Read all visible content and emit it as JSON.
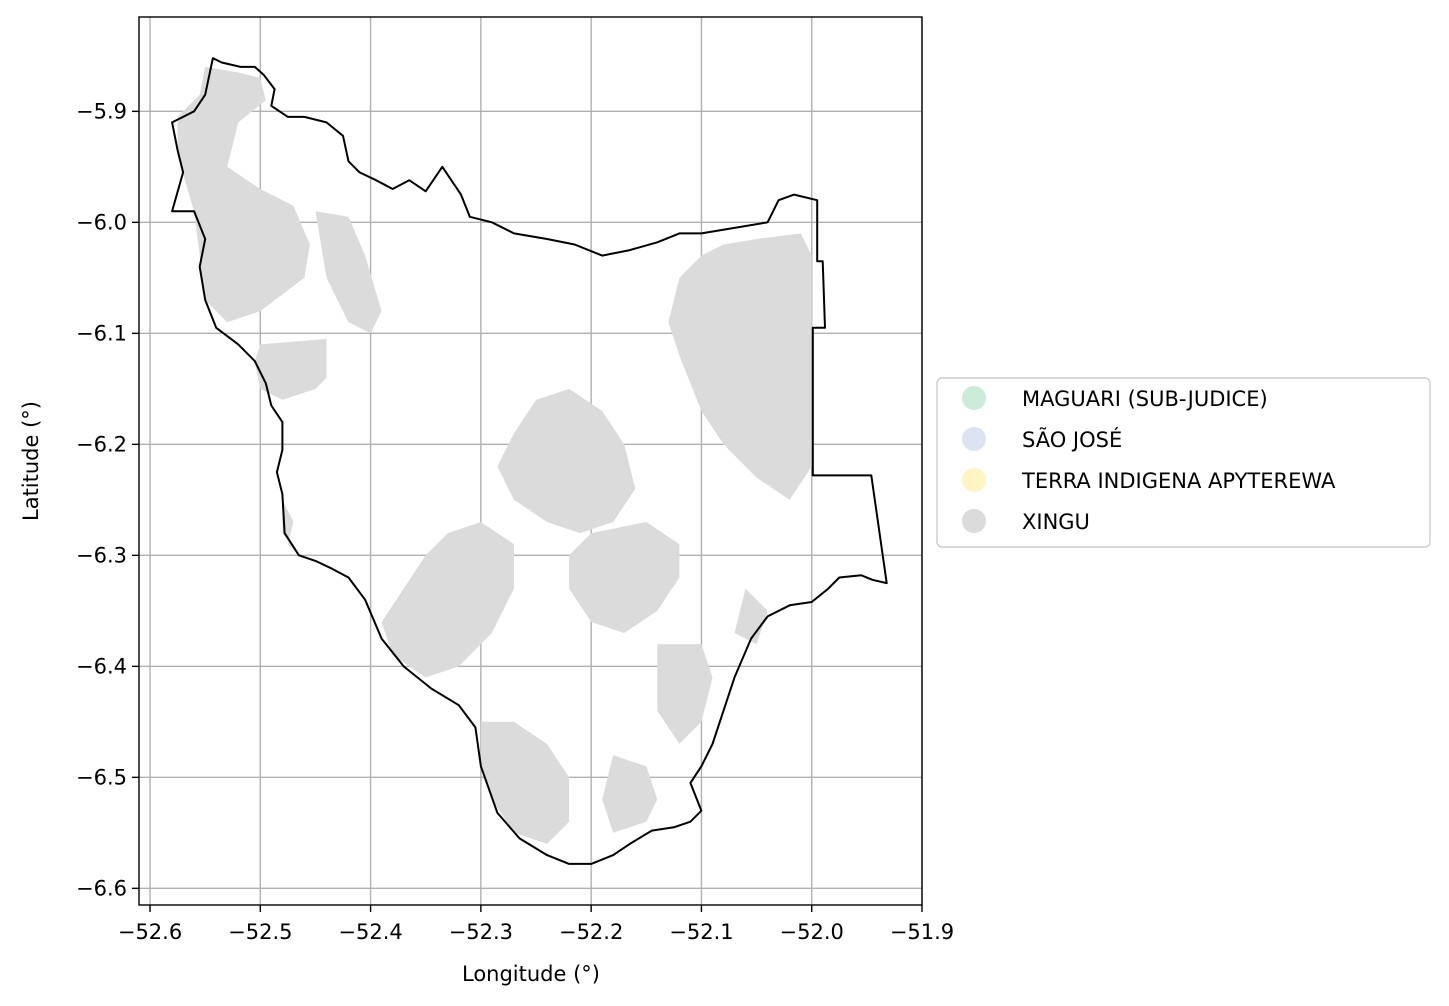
{
  "chart_data": {
    "type": "map",
    "title": "",
    "xlabel": "Longitude (°)",
    "ylabel": "Latitude (°)",
    "xlim": [
      -52.61,
      -51.9
    ],
    "ylim": [
      -6.615,
      -5.815
    ],
    "grid": true,
    "xticks": [
      {
        "value": -52.6,
        "label": "−52.6"
      },
      {
        "value": -52.5,
        "label": "−52.5"
      },
      {
        "value": -52.4,
        "label": "−52.4"
      },
      {
        "value": -52.3,
        "label": "−52.3"
      },
      {
        "value": -52.2,
        "label": "−52.2"
      },
      {
        "value": -52.1,
        "label": "−52.1"
      },
      {
        "value": -52.0,
        "label": "−52.0"
      },
      {
        "value": -51.9,
        "label": "−51.9"
      }
    ],
    "yticks": [
      {
        "value": -5.9,
        "label": "−5.9"
      },
      {
        "value": -6.0,
        "label": "−6.0"
      },
      {
        "value": -6.1,
        "label": "−6.1"
      },
      {
        "value": -6.2,
        "label": "−6.2"
      },
      {
        "value": -6.3,
        "label": "−6.3"
      },
      {
        "value": -6.4,
        "label": "−6.4"
      },
      {
        "value": -6.5,
        "label": "−6.5"
      },
      {
        "value": -6.6,
        "label": "−6.6"
      }
    ],
    "legend_position": "center-right outside",
    "legend": [
      {
        "label": "MAGUARI (SUB-JUDICE)",
        "color": "#ccebd9"
      },
      {
        "label": "SÃO JOSÉ",
        "color": "#dde3f0"
      },
      {
        "label": "TERRA INDIGENA APYTEREWA",
        "color": "#fff4c2"
      },
      {
        "label": "XINGU",
        "color": "#dbdbdb"
      }
    ],
    "boundary": {
      "color": "#000000",
      "coordinates": [
        [
          -52.543,
          -5.852
        ],
        [
          -52.535,
          -5.856
        ],
        [
          -52.518,
          -5.86
        ],
        [
          -52.505,
          -5.86
        ],
        [
          -52.497,
          -5.867
        ],
        [
          -52.487,
          -5.88
        ],
        [
          -52.49,
          -5.895
        ],
        [
          -52.475,
          -5.905
        ],
        [
          -52.46,
          -5.905
        ],
        [
          -52.44,
          -5.91
        ],
        [
          -52.425,
          -5.922
        ],
        [
          -52.42,
          -5.945
        ],
        [
          -52.41,
          -5.955
        ],
        [
          -52.395,
          -5.962
        ],
        [
          -52.38,
          -5.97
        ],
        [
          -52.365,
          -5.962
        ],
        [
          -52.35,
          -5.972
        ],
        [
          -52.335,
          -5.95
        ],
        [
          -52.318,
          -5.975
        ],
        [
          -52.31,
          -5.995
        ],
        [
          -52.29,
          -6.0
        ],
        [
          -52.27,
          -6.01
        ],
        [
          -52.24,
          -6.015
        ],
        [
          -52.215,
          -6.02
        ],
        [
          -52.19,
          -6.03
        ],
        [
          -52.165,
          -6.025
        ],
        [
          -52.14,
          -6.018
        ],
        [
          -52.12,
          -6.01
        ],
        [
          -52.1,
          -6.01
        ],
        [
          -52.07,
          -6.005
        ],
        [
          -52.04,
          -6.0
        ],
        [
          -52.03,
          -5.98
        ],
        [
          -52.016,
          -5.975
        ],
        [
          -51.995,
          -5.98
        ],
        [
          -51.995,
          -6.035
        ],
        [
          -51.99,
          -6.035
        ],
        [
          -51.988,
          -6.095
        ],
        [
          -51.999,
          -6.095
        ],
        [
          -51.999,
          -6.228
        ],
        [
          -51.946,
          -6.228
        ],
        [
          -51.932,
          -6.325
        ],
        [
          -51.945,
          -6.322
        ],
        [
          -51.955,
          -6.318
        ],
        [
          -51.975,
          -6.32
        ],
        [
          -51.985,
          -6.33
        ],
        [
          -52.0,
          -6.342
        ],
        [
          -52.02,
          -6.345
        ],
        [
          -52.04,
          -6.355
        ],
        [
          -52.055,
          -6.375
        ],
        [
          -52.07,
          -6.41
        ],
        [
          -52.09,
          -6.47
        ],
        [
          -52.1,
          -6.49
        ],
        [
          -52.11,
          -6.505
        ],
        [
          -52.1,
          -6.53
        ],
        [
          -52.11,
          -6.54
        ],
        [
          -52.125,
          -6.545
        ],
        [
          -52.145,
          -6.548
        ],
        [
          -52.165,
          -6.56
        ],
        [
          -52.18,
          -6.57
        ],
        [
          -52.2,
          -6.578
        ],
        [
          -52.22,
          -6.578
        ],
        [
          -52.24,
          -6.57
        ],
        [
          -52.265,
          -6.555
        ],
        [
          -52.285,
          -6.532
        ],
        [
          -52.3,
          -6.49
        ],
        [
          -52.305,
          -6.455
        ],
        [
          -52.32,
          -6.435
        ],
        [
          -52.345,
          -6.42
        ],
        [
          -52.37,
          -6.4
        ],
        [
          -52.39,
          -6.375
        ],
        [
          -52.405,
          -6.34
        ],
        [
          -52.42,
          -6.32
        ],
        [
          -52.435,
          -6.312
        ],
        [
          -52.45,
          -6.305
        ],
        [
          -52.465,
          -6.3
        ],
        [
          -52.478,
          -6.28
        ],
        [
          -52.48,
          -6.245
        ],
        [
          -52.485,
          -6.225
        ],
        [
          -52.48,
          -6.205
        ],
        [
          -52.48,
          -6.18
        ],
        [
          -52.49,
          -6.165
        ],
        [
          -52.495,
          -6.145
        ],
        [
          -52.505,
          -6.125
        ],
        [
          -52.52,
          -6.11
        ],
        [
          -52.54,
          -6.095
        ],
        [
          -52.55,
          -6.07
        ],
        [
          -52.555,
          -6.04
        ],
        [
          -52.55,
          -6.015
        ],
        [
          -52.56,
          -5.99
        ],
        [
          -52.58,
          -5.99
        ],
        [
          -52.57,
          -5.955
        ],
        [
          -52.575,
          -5.935
        ],
        [
          -52.58,
          -5.91
        ],
        [
          -52.57,
          -5.905
        ],
        [
          -52.56,
          -5.9
        ],
        [
          -52.55,
          -5.885
        ]
      ]
    },
    "regions": [
      {
        "name": "XINGU",
        "color": "#dbdbdb",
        "coordinates": [
          [
            -52.55,
            -5.86
          ],
          [
            -52.52,
            -5.865
          ],
          [
            -52.5,
            -5.87
          ],
          [
            -52.495,
            -5.89
          ],
          [
            -52.52,
            -5.91
          ],
          [
            -52.53,
            -5.95
          ],
          [
            -52.5,
            -5.97
          ],
          [
            -52.47,
            -5.985
          ],
          [
            -52.455,
            -6.02
          ],
          [
            -52.46,
            -6.05
          ],
          [
            -52.5,
            -6.08
          ],
          [
            -52.53,
            -6.09
          ],
          [
            -52.55,
            -6.07
          ],
          [
            -52.555,
            -6.03
          ],
          [
            -52.56,
            -5.99
          ],
          [
            -52.575,
            -5.94
          ],
          [
            -52.575,
            -5.905
          ],
          [
            -52.555,
            -5.885
          ]
        ]
      },
      {
        "name": "XINGU",
        "color": "#dbdbdb",
        "coordinates": [
          [
            -52.5,
            -6.11
          ],
          [
            -52.44,
            -6.105
          ],
          [
            -52.44,
            -6.14
          ],
          [
            -52.45,
            -6.15
          ],
          [
            -52.465,
            -6.155
          ],
          [
            -52.48,
            -6.16
          ],
          [
            -52.5,
            -6.15
          ],
          [
            -52.505,
            -6.125
          ]
        ]
      },
      {
        "name": "XINGU",
        "color": "#dbdbdb",
        "coordinates": [
          [
            -52.45,
            -5.99
          ],
          [
            -52.42,
            -5.995
          ],
          [
            -52.405,
            -6.03
          ],
          [
            -52.39,
            -6.08
          ],
          [
            -52.4,
            -6.1
          ],
          [
            -52.42,
            -6.09
          ],
          [
            -52.44,
            -6.05
          ]
        ]
      },
      {
        "name": "XINGU",
        "color": "#dbdbdb",
        "coordinates": [
          [
            -52.08,
            -6.02
          ],
          [
            -52.05,
            -6.015
          ],
          [
            -52.01,
            -6.01
          ],
          [
            -52.0,
            -6.03
          ],
          [
            -52.0,
            -6.13
          ],
          [
            -52.0,
            -6.22
          ],
          [
            -52.02,
            -6.25
          ],
          [
            -52.05,
            -6.23
          ],
          [
            -52.08,
            -6.2
          ],
          [
            -52.1,
            -6.17
          ],
          [
            -52.12,
            -6.12
          ],
          [
            -52.13,
            -6.09
          ],
          [
            -52.12,
            -6.05
          ],
          [
            -52.1,
            -6.03
          ]
        ]
      },
      {
        "name": "XINGU",
        "color": "#dbdbdb",
        "coordinates": [
          [
            -52.25,
            -6.16
          ],
          [
            -52.22,
            -6.15
          ],
          [
            -52.19,
            -6.17
          ],
          [
            -52.17,
            -6.2
          ],
          [
            -52.16,
            -6.24
          ],
          [
            -52.18,
            -6.27
          ],
          [
            -52.21,
            -6.28
          ],
          [
            -52.24,
            -6.27
          ],
          [
            -52.27,
            -6.25
          ],
          [
            -52.285,
            -6.22
          ],
          [
            -52.27,
            -6.19
          ]
        ]
      },
      {
        "name": "XINGU",
        "color": "#dbdbdb",
        "coordinates": [
          [
            -52.2,
            -6.28
          ],
          [
            -52.15,
            -6.27
          ],
          [
            -52.12,
            -6.29
          ],
          [
            -52.12,
            -6.32
          ],
          [
            -52.14,
            -6.35
          ],
          [
            -52.17,
            -6.37
          ],
          [
            -52.2,
            -6.36
          ],
          [
            -52.22,
            -6.33
          ],
          [
            -52.22,
            -6.3
          ]
        ]
      },
      {
        "name": "XINGU",
        "color": "#dbdbdb",
        "coordinates": [
          [
            -52.33,
            -6.28
          ],
          [
            -52.3,
            -6.27
          ],
          [
            -52.27,
            -6.29
          ],
          [
            -52.27,
            -6.33
          ],
          [
            -52.29,
            -6.37
          ],
          [
            -52.32,
            -6.4
          ],
          [
            -52.35,
            -6.41
          ],
          [
            -52.38,
            -6.39
          ],
          [
            -52.39,
            -6.36
          ],
          [
            -52.37,
            -6.33
          ],
          [
            -52.35,
            -6.3
          ]
        ]
      },
      {
        "name": "XINGU",
        "color": "#dbdbdb",
        "coordinates": [
          [
            -52.14,
            -6.38
          ],
          [
            -52.1,
            -6.38
          ],
          [
            -52.09,
            -6.41
          ],
          [
            -52.1,
            -6.45
          ],
          [
            -52.12,
            -6.47
          ],
          [
            -52.14,
            -6.44
          ]
        ]
      },
      {
        "name": "XINGU",
        "color": "#dbdbdb",
        "coordinates": [
          [
            -52.3,
            -6.45
          ],
          [
            -52.27,
            -6.45
          ],
          [
            -52.24,
            -6.47
          ],
          [
            -52.22,
            -6.5
          ],
          [
            -52.22,
            -6.54
          ],
          [
            -52.24,
            -6.56
          ],
          [
            -52.27,
            -6.55
          ],
          [
            -52.29,
            -6.52
          ],
          [
            -52.3,
            -6.49
          ]
        ]
      },
      {
        "name": "XINGU",
        "color": "#dbdbdb",
        "coordinates": [
          [
            -52.18,
            -6.48
          ],
          [
            -52.15,
            -6.49
          ],
          [
            -52.14,
            -6.52
          ],
          [
            -52.15,
            -6.54
          ],
          [
            -52.18,
            -6.55
          ],
          [
            -52.19,
            -6.52
          ]
        ]
      },
      {
        "name": "XINGU",
        "color": "#dbdbdb",
        "coordinates": [
          [
            -52.06,
            -6.33
          ],
          [
            -52.04,
            -6.35
          ],
          [
            -52.05,
            -6.38
          ],
          [
            -52.07,
            -6.37
          ]
        ]
      },
      {
        "name": "XINGU",
        "color": "#dbdbdb",
        "coordinates": [
          [
            -52.48,
            -6.25
          ],
          [
            -52.47,
            -6.27
          ],
          [
            -52.475,
            -6.29
          ],
          [
            -52.465,
            -6.3
          ],
          [
            -52.48,
            -6.28
          ]
        ]
      }
    ]
  }
}
